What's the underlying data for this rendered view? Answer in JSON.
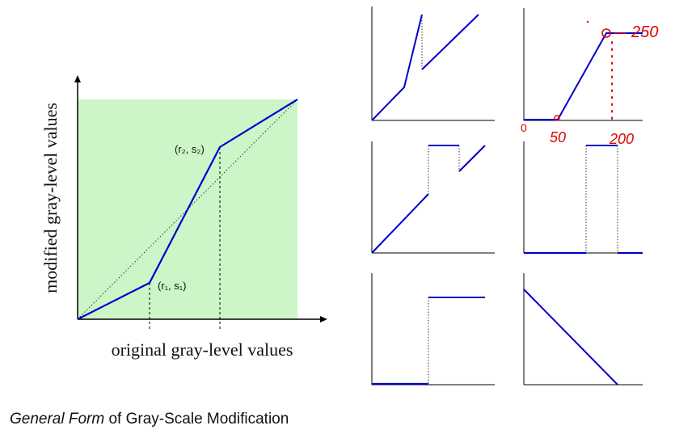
{
  "main_diagram": {
    "point_1_label": "(r₁, s₁)",
    "point_2_label": "(r₂, s₂)",
    "x_axis_label": "original gray-level values",
    "y_axis_label": "modified gray-level values",
    "fill_color": "#ccf5c8",
    "line_color": "#0000cc"
  },
  "annotations": {
    "val_250": "250",
    "val_0": "0",
    "val_50": "50",
    "val_200": "200",
    "ink_color": "#e00000"
  },
  "caption": {
    "part1": "General Form",
    "part2": " of Gray-Scale Modification"
  }
}
